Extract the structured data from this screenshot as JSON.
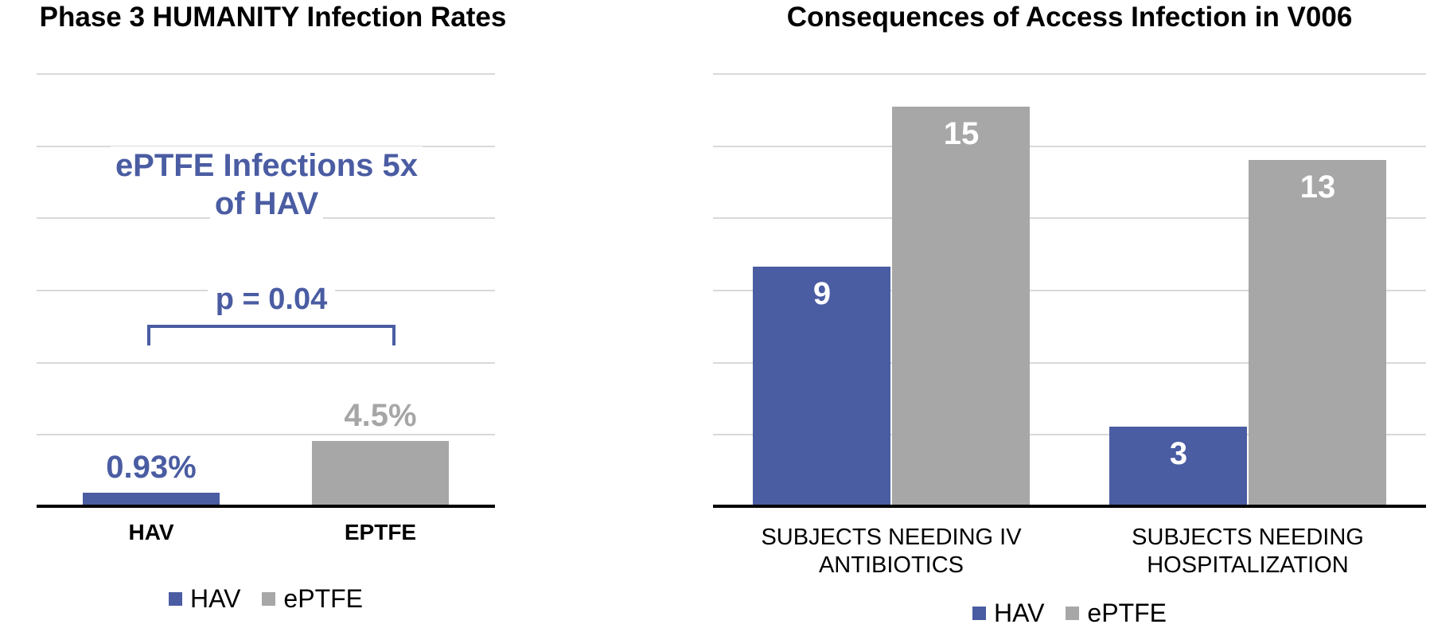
{
  "colors": {
    "blue": "#4A5CA2",
    "gray": "#A7A7A7",
    "gray_label": "#A6A6A6",
    "gridline": "#D9D9D9",
    "axis": "#000000",
    "value_label_inside": "#FFFFFF",
    "title_text": "#000000"
  },
  "chart_data": [
    {
      "id": "infection-rates",
      "type": "bar",
      "title": "Phase 3 HUMANITY Infection Rates",
      "categories": [
        "HAV",
        "EPTFE"
      ],
      "values": [
        0.93,
        4.5
      ],
      "value_labels": [
        "0.93%",
        "4.5%"
      ],
      "point_colors": [
        "blue",
        "gray"
      ],
      "value_label_colors": [
        "blue",
        "gray_label"
      ],
      "ylim": [
        0,
        30
      ],
      "grid": true,
      "gridline_count": 6,
      "y_tick_labels_shown": false,
      "legend_position": "bottom",
      "legend": [
        {
          "label": "HAV",
          "color": "blue"
        },
        {
          "label": "ePTFE",
          "color": "gray"
        }
      ],
      "annotations": {
        "note_line1": "ePTFE Infections 5x",
        "note_line2": "of HAV",
        "p_value": "p = 0.04"
      }
    },
    {
      "id": "consequences",
      "type": "bar",
      "title": "Consequences of Access Infection in V006",
      "categories": [
        [
          "SUBJECTS NEEDING IV",
          "ANTIBIOTICS"
        ],
        [
          "SUBJECTS NEEDING",
          "HOSPITALIZATION"
        ]
      ],
      "series": [
        {
          "name": "HAV",
          "color": "blue",
          "values": [
            9,
            3
          ]
        },
        {
          "name": "ePTFE",
          "color": "gray",
          "values": [
            15,
            13
          ]
        }
      ],
      "ylim": [
        0,
        16.25
      ],
      "grid": true,
      "gridline_count": 6,
      "y_tick_labels_shown": false,
      "legend_position": "bottom",
      "legend": [
        {
          "label": "HAV",
          "color": "blue"
        },
        {
          "label": "ePTFE",
          "color": "gray"
        }
      ]
    }
  ]
}
